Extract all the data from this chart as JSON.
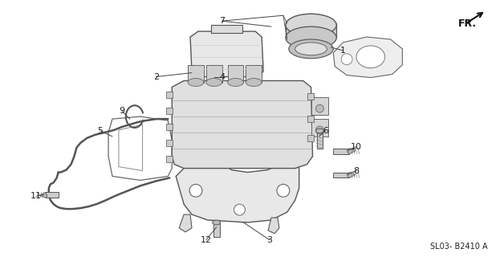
{
  "bg_color": "#ffffff",
  "diagram_code": "SL03- B2410 A",
  "fr_label": "FR.",
  "text_color": "#222222",
  "line_color": "#333333",
  "font_size": 9
}
